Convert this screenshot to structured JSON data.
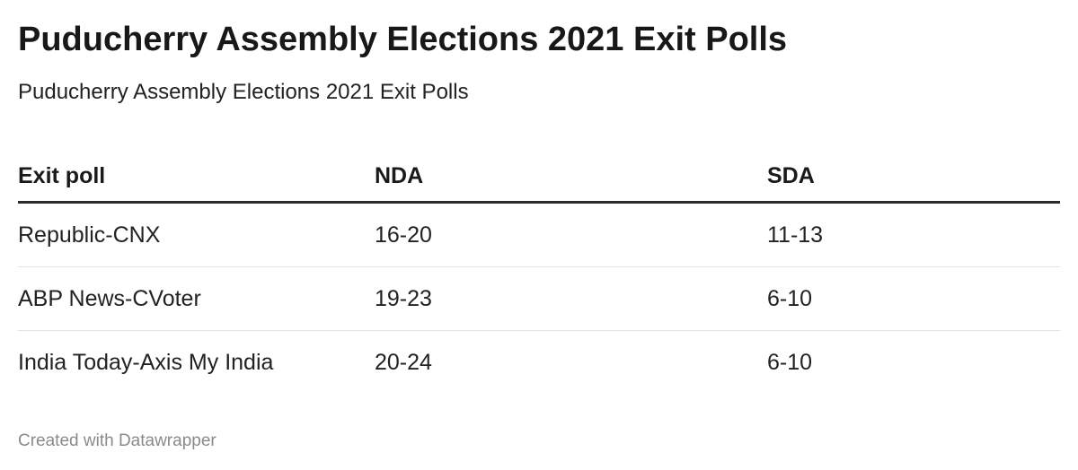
{
  "title": "Puducherry Assembly Elections 2021 Exit Polls",
  "subtitle": "Puducherry Assembly Elections 2021 Exit Polls",
  "footer": "Created with Datawrapper",
  "chart_data": {
    "type": "table",
    "columns": [
      "Exit poll",
      "NDA",
      "SDA"
    ],
    "rows": [
      [
        "Republic-CNX",
        "16-20",
        "11-13"
      ],
      [
        "ABP News-CVoter",
        "19-23",
        "6-10"
      ],
      [
        "India Today-Axis My India",
        "20-24",
        "6-10"
      ]
    ]
  }
}
